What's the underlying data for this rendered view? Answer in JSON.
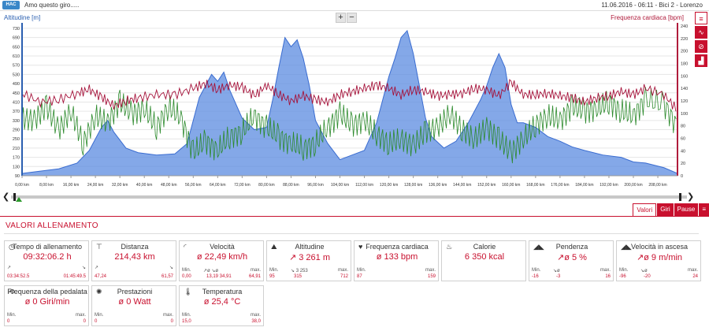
{
  "header": {
    "logo": "HAC",
    "title": "Amo questo giro.....",
    "meta": "11.06.2016  -  06:11  -  Bici 2  -  Lorenzo"
  },
  "chart_data": {
    "type": "line",
    "left_axis_title": "Altitudine [m]",
    "right_axis_title": "Frequenza cardiaca [bpm]",
    "left_ticks": [
      90,
      130,
      170,
      210,
      250,
      290,
      330,
      370,
      410,
      450,
      490,
      530,
      570,
      610,
      650,
      690,
      730
    ],
    "right_ticks": [
      0,
      20,
      40,
      60,
      80,
      100,
      120,
      140,
      160,
      180,
      200,
      220,
      240
    ],
    "x_ticks": [
      "0,00 km",
      "8,00 km",
      "16,00 km",
      "24,00 km",
      "32,00 km",
      "40,00 km",
      "48,00 km",
      "56,00 km",
      "64,00 km",
      "72,00 km",
      "80,00 km",
      "88,00 km",
      "96,00 km",
      "104,00 km",
      "112,00 km",
      "120,00 km",
      "128,00 km",
      "136,00 km",
      "144,00 km",
      "152,00 km",
      "160,00 km",
      "168,00 km",
      "176,00 km",
      "184,00 km",
      "192,00 km",
      "200,00 km",
      "208,00 km"
    ],
    "x_range": [
      0,
      214.43
    ],
    "left_range": [
      90,
      740
    ],
    "right_range": [
      0,
      240
    ],
    "altitude": {
      "name": "Altitudine",
      "color": "#5b8be0",
      "x": [
        0,
        6,
        12,
        18,
        22,
        26,
        28,
        30,
        34,
        38,
        44,
        50,
        54,
        56,
        58,
        60,
        62,
        64,
        66,
        68,
        72,
        76,
        80,
        82,
        84,
        86,
        88,
        90,
        92,
        94,
        96,
        100,
        104,
        108,
        112,
        116,
        118,
        120,
        122,
        124,
        126,
        128,
        130,
        132,
        134,
        138,
        142,
        146,
        150,
        152,
        154,
        156,
        158,
        160,
        162,
        164,
        168,
        172,
        176,
        180,
        184,
        190,
        196,
        200,
        204,
        210,
        214.43
      ],
      "y": [
        100,
        110,
        120,
        145,
        200,
        300,
        330,
        280,
        210,
        190,
        180,
        185,
        230,
        330,
        430,
        480,
        530,
        500,
        540,
        460,
        340,
        290,
        300,
        420,
        560,
        690,
        650,
        680,
        600,
        480,
        330,
        230,
        160,
        180,
        200,
        320,
        420,
        520,
        600,
        690,
        720,
        620,
        480,
        340,
        260,
        210,
        240,
        320,
        420,
        480,
        560,
        620,
        560,
        400,
        320,
        320,
        300,
        260,
        240,
        215,
        200,
        180,
        170,
        150,
        145,
        125,
        100
      ]
    },
    "heart_rate": {
      "name": "Frequenza cardiaca",
      "color": "#a5123a",
      "x": [
        0,
        6,
        12,
        18,
        22,
        26,
        30,
        34,
        38,
        44,
        50,
        56,
        60,
        64,
        68,
        72,
        76,
        80,
        84,
        88,
        92,
        96,
        100,
        104,
        108,
        112,
        116,
        120,
        124,
        128,
        132,
        136,
        140,
        144,
        148,
        152,
        156,
        160,
        164,
        168,
        172,
        176,
        180,
        184,
        188,
        192,
        196,
        200,
        204,
        210,
        214.43
      ],
      "y": [
        132,
        118,
        122,
        132,
        138,
        126,
        112,
        120,
        125,
        130,
        130,
        140,
        148,
        138,
        145,
        142,
        128,
        145,
        130,
        120,
        128,
        122,
        118,
        130,
        135,
        140,
        145,
        140,
        130,
        138,
        135,
        128,
        130,
        132,
        140,
        138,
        128,
        150,
        130,
        130,
        132,
        128,
        125,
        118,
        125,
        128,
        135,
        130,
        140,
        130,
        105
      ]
    },
    "speed": {
      "name": "Velocità",
      "color": "#2c8a2c",
      "x": [
        0,
        4,
        8,
        12,
        16,
        20,
        24,
        28,
        32,
        36,
        40,
        44,
        48,
        52,
        56,
        60,
        64,
        68,
        72,
        76,
        80,
        84,
        88,
        92,
        96,
        100,
        104,
        108,
        112,
        116,
        120,
        124,
        128,
        132,
        136,
        140,
        144,
        148,
        152,
        156,
        160,
        164,
        168,
        172,
        176,
        180,
        184,
        188,
        192,
        196,
        200,
        204,
        210,
        214.43
      ],
      "y": [
        340,
        330,
        390,
        290,
        370,
        230,
        350,
        320,
        410,
        360,
        380,
        300,
        390,
        340,
        190,
        240,
        200,
        260,
        280,
        350,
        300,
        260,
        230,
        210,
        230,
        300,
        360,
        310,
        330,
        270,
        230,
        250,
        220,
        280,
        300,
        360,
        290,
        250,
        300,
        250,
        190,
        250,
        310,
        350,
        330,
        390,
        370,
        380,
        410,
        370,
        350,
        420,
        400,
        300
      ]
    }
  },
  "nav": {
    "prev": "❮",
    "next": "❯"
  },
  "tabs": [
    "Valori",
    "Giri",
    "Pause",
    "≡"
  ],
  "section_title": "VALORI ALLENAMENTO",
  "cards": [
    {
      "icon": "◷",
      "title": "Tempo di allenamento",
      "value": "09:32:06.2 h",
      "min_label": "",
      "min_icon": "↗",
      "min": "03:34:52.5",
      "mid_label": "",
      "mid_icon": "",
      "mid": "",
      "max_label": "",
      "max_icon": "↘",
      "max": "01:45:49.5"
    },
    {
      "icon": "⊤",
      "title": "Distanza",
      "value": "214,43 km",
      "min_label": "",
      "min_icon": "↗",
      "min": "47,24",
      "mid_label": "",
      "mid_icon": "",
      "mid": "",
      "max_label": "",
      "max_icon": "↘",
      "max": "61,57"
    },
    {
      "icon": "◜",
      "title": "Velocità",
      "value": "ø 22,49 km/h",
      "min_label": "Min.",
      "min_icon": "",
      "min": "0,00",
      "mid_label": "",
      "mid_icon": "↗ø ↘ø",
      "mid": "13,19  34,91",
      "max_label": "max.",
      "max_icon": "",
      "max": "64,91"
    },
    {
      "icon": "⛰",
      "title": "Altitudine",
      "value": "↗ 3 261 m",
      "min_label": "Min.",
      "min_icon": "",
      "min": "95",
      "mid_label": "",
      "mid_icon": "↘ 3 253",
      "mid": "315",
      "max_label": "max.",
      "max_icon": "",
      "max": "712"
    },
    {
      "icon": "♥",
      "title": "Frequenza cardiaca",
      "value": "ø 133 bpm",
      "min_label": "Min.",
      "min_icon": "",
      "min": "87",
      "mid_label": "",
      "mid_icon": "",
      "mid": "",
      "max_label": "max.",
      "max_icon": "",
      "max": "159"
    },
    {
      "icon": "♨",
      "title": "Calorie",
      "value": "6 350 kcal",
      "min_label": "",
      "min_icon": "",
      "min": "",
      "mid_label": "",
      "mid_icon": "",
      "mid": "",
      "max_label": "",
      "max_icon": "",
      "max": ""
    },
    {
      "icon": "◢◣",
      "title": "Pendenza",
      "value": "↗ø 5 %",
      "min_label": "Min.",
      "min_icon": "",
      "min": "-16",
      "mid_label": "",
      "mid_icon": "↘ø",
      "mid": "-3",
      "max_label": "max.",
      "max_icon": "",
      "max": "16"
    },
    {
      "icon": "◢◣",
      "title": "Velocità in ascesa",
      "value": "↗ø 9 m/min",
      "min_label": "Min.",
      "min_icon": "",
      "min": "-96",
      "mid_label": "",
      "mid_icon": "↘ø",
      "mid": "-20",
      "max_label": "max.",
      "max_icon": "",
      "max": "24"
    },
    {
      "icon": "⟲",
      "title": "Frequenza della pedalata",
      "value": "ø 0 Giri/min",
      "min_label": "Min.",
      "min_icon": "",
      "min": "0",
      "mid_label": "",
      "mid_icon": "",
      "mid": "",
      "max_label": "max.",
      "max_icon": "",
      "max": "0"
    },
    {
      "icon": "✺",
      "title": "Prestazioni",
      "value": "ø 0 Watt",
      "min_label": "Min.",
      "min_icon": "",
      "min": "0",
      "mid_label": "",
      "mid_icon": "",
      "mid": "",
      "max_label": "max.",
      "max_icon": "",
      "max": "0"
    },
    {
      "icon": "🌡",
      "title": "Temperatura",
      "value": "ø 25,4 °C",
      "min_label": "Min.",
      "min_icon": "",
      "min": "15,0",
      "mid_label": "",
      "mid_icon": "",
      "mid": "",
      "max_label": "max.",
      "max_icon": "",
      "max": "38,0"
    }
  ],
  "side_tools": [
    "≡",
    "∿",
    "⊘",
    "▟"
  ]
}
